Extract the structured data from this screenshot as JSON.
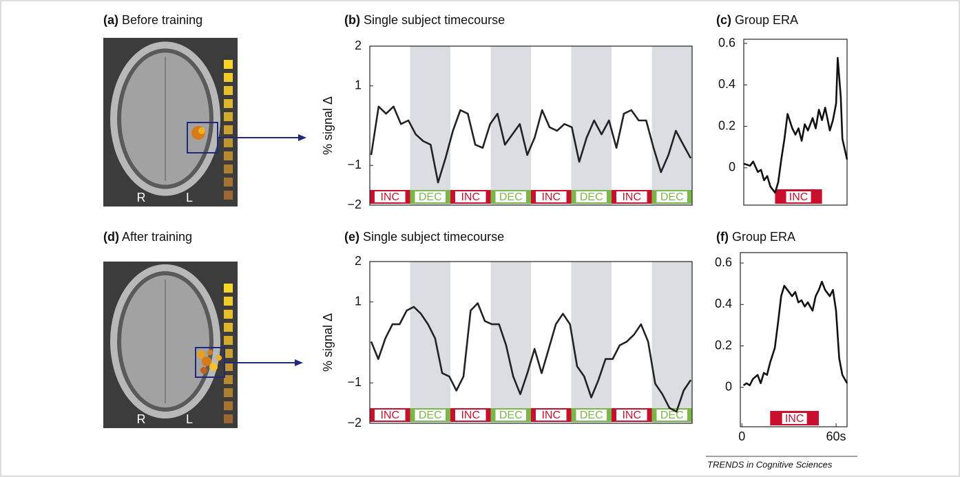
{
  "chart_data": [
    {
      "type": "image",
      "panel": "(a)",
      "title": "Before training",
      "labels": [
        "R",
        "L"
      ]
    },
    {
      "type": "line",
      "panel": "(b)",
      "title": "Single subject timecourse",
      "ylabel": "% signal Δ",
      "ylim": [
        -2,
        2
      ],
      "yticks": [
        2,
        1,
        {
          "value": -1,
          "label": "−1"
        },
        {
          "value": -2,
          "label": "−2"
        }
      ],
      "color": "#222222",
      "values": [
        -0.74,
        0.48,
        0.3,
        0.48,
        0.04,
        0.13,
        -0.22,
        -0.39,
        -0.48,
        -1.43,
        -0.82,
        -0.13,
        0.39,
        0.3,
        -0.48,
        -0.56,
        0.04,
        0.3,
        -0.48,
        -0.22,
        0.04,
        -0.74,
        -0.3,
        0.39,
        -0.04,
        -0.13,
        0.04,
        -0.04,
        -0.91,
        -0.3,
        0.13,
        -0.22,
        0.13,
        -0.56,
        0.3,
        0.39,
        0.13,
        0.13,
        -0.56,
        -1.17,
        -0.74,
        -0.13,
        -0.48,
        -0.82
      ],
      "blocks": [
        "INC",
        "DEC",
        "INC",
        "DEC",
        "INC",
        "DEC",
        "INC",
        "DEC"
      ],
      "block_colors": {
        "INC": "#c8102e",
        "DEC": "#7ab648"
      },
      "shade_color": "#dcdde3"
    },
    {
      "type": "line",
      "panel": "(c)",
      "title": "Group ERA",
      "ylim": [
        -0.18,
        0.62
      ],
      "yticks": [
        0,
        0.2,
        0.4,
        0.6
      ],
      "xlim": [
        1,
        67
      ],
      "color": "#111111",
      "x": [
        1,
        5,
        7,
        10,
        12,
        14,
        16,
        18,
        21,
        23,
        25,
        27,
        29,
        32,
        34,
        36,
        38,
        40,
        42,
        45,
        47,
        49,
        51,
        53,
        56,
        58,
        60,
        61,
        63,
        64,
        67
      ],
      "values": [
        0.02,
        0.01,
        0.03,
        -0.02,
        -0.01,
        -0.06,
        -0.04,
        -0.09,
        -0.12,
        -0.07,
        0.04,
        0.14,
        0.26,
        0.19,
        0.16,
        0.19,
        0.13,
        0.21,
        0.18,
        0.24,
        0.19,
        0.28,
        0.23,
        0.29,
        0.18,
        0.23,
        0.31,
        0.53,
        0.34,
        0.14,
        0.04
      ],
      "block": "INC",
      "block_range": [
        21,
        51
      ],
      "block_color": "#c8102e"
    },
    {
      "type": "image",
      "panel": "(d)",
      "title": "After training",
      "labels": [
        "R",
        "L"
      ]
    },
    {
      "type": "line",
      "panel": "(e)",
      "title": "Single subject timecourse",
      "ylabel": "% signal Δ",
      "ylim": [
        -2,
        2
      ],
      "yticks": [
        2,
        1,
        {
          "value": -1,
          "label": "−1"
        },
        {
          "value": -2,
          "label": "−2"
        }
      ],
      "color": "#222222",
      "values": [
        0.02,
        -0.41,
        0.1,
        0.45,
        0.45,
        0.79,
        0.88,
        0.71,
        0.45,
        0.1,
        -0.76,
        -0.84,
        -1.19,
        -0.84,
        0.79,
        0.97,
        0.53,
        0.45,
        0.45,
        -0.07,
        -0.84,
        -1.28,
        -0.76,
        -0.16,
        -0.76,
        -0.16,
        0.45,
        0.71,
        0.45,
        -0.59,
        -0.84,
        -1.36,
        -0.93,
        -0.41,
        -0.41,
        -0.07,
        0.02,
        0.19,
        0.45,
        0.02,
        -1.02,
        -1.28,
        -1.62,
        -1.71,
        -1.19,
        -0.93
      ],
      "blocks": [
        "INC",
        "DEC",
        "INC",
        "DEC",
        "INC",
        "DEC",
        "INC",
        "DEC"
      ],
      "block_colors": {
        "INC": "#c8102e",
        "DEC": "#7ab648"
      },
      "shade_color": "#dcdde3"
    },
    {
      "type": "line",
      "panel": "(f)",
      "title": "Group ERA",
      "ylim": [
        -0.19,
        0.65
      ],
      "yticks": [
        0,
        0.2,
        0.4,
        0.6
      ],
      "xlim": [
        -1,
        67
      ],
      "xticks": [
        0,
        {
          "value": 60,
          "label": "60s"
        }
      ],
      "color": "#111111",
      "x": [
        1,
        3,
        5,
        7,
        10,
        12,
        14,
        16,
        18,
        21,
        23,
        25,
        27,
        29,
        32,
        34,
        36,
        38,
        40,
        42,
        45,
        47,
        49,
        51,
        53,
        56,
        58,
        60,
        62,
        64,
        67
      ],
      "values": [
        0.01,
        0.02,
        0.01,
        0.04,
        0.06,
        0.02,
        0.07,
        0.06,
        0.12,
        0.19,
        0.31,
        0.44,
        0.49,
        0.47,
        0.44,
        0.46,
        0.41,
        0.42,
        0.39,
        0.41,
        0.37,
        0.44,
        0.47,
        0.51,
        0.47,
        0.44,
        0.47,
        0.37,
        0.14,
        0.06,
        0.02
      ],
      "block": "INC",
      "block_range": [
        18,
        49
      ],
      "block_color": "#c8102e"
    }
  ],
  "footer": "TRENDS in Cognitive Sciences"
}
